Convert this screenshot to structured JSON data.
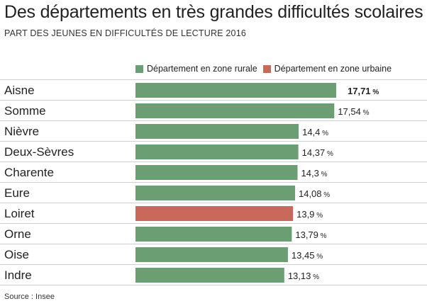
{
  "title": "Des départements en très grandes difficultés scolaires",
  "subtitle": "PART DES JEUNES EN DIFFICULTÉS DE LECTURE 2016",
  "source": "Source : Insee",
  "colors": {
    "rural": "#6c9e74",
    "urbain": "#c8695a",
    "separator": "#cfcfcf"
  },
  "legend": [
    {
      "label": "Département en zone rurale",
      "color_key": "rural"
    },
    {
      "label": "Département en zone urbaine",
      "color_key": "urbain"
    }
  ],
  "chart_data": {
    "type": "bar",
    "orientation": "horizontal",
    "title": "Des départements en très grandes difficultés scolaires",
    "subtitle": "PART DES JEUNES EN DIFFICULTÉS DE LECTURE 2016",
    "unit": "%",
    "xlim": [
      0,
      17.71
    ],
    "categories": [
      "Aisne",
      "Somme",
      "Nièvre",
      "Deux-Sèvres",
      "Charente",
      "Eure",
      "Loiret",
      "Orne",
      "Oise",
      "Indre"
    ],
    "values": [
      17.71,
      17.54,
      14.4,
      14.37,
      14.3,
      14.08,
      13.9,
      13.79,
      13.45,
      13.13
    ],
    "value_labels": [
      "17,71",
      "17,54",
      "14,4",
      "14,37",
      "14,3",
      "14,08",
      "13,9",
      "13,79",
      "13,45",
      "13,13"
    ],
    "zones": [
      "rurale",
      "rurale",
      "rurale",
      "rurale",
      "rurale",
      "rurale",
      "urbaine",
      "rurale",
      "rurale",
      "rurale"
    ],
    "highlight_first_label": true,
    "grid": false,
    "legend_position": "top-right"
  }
}
